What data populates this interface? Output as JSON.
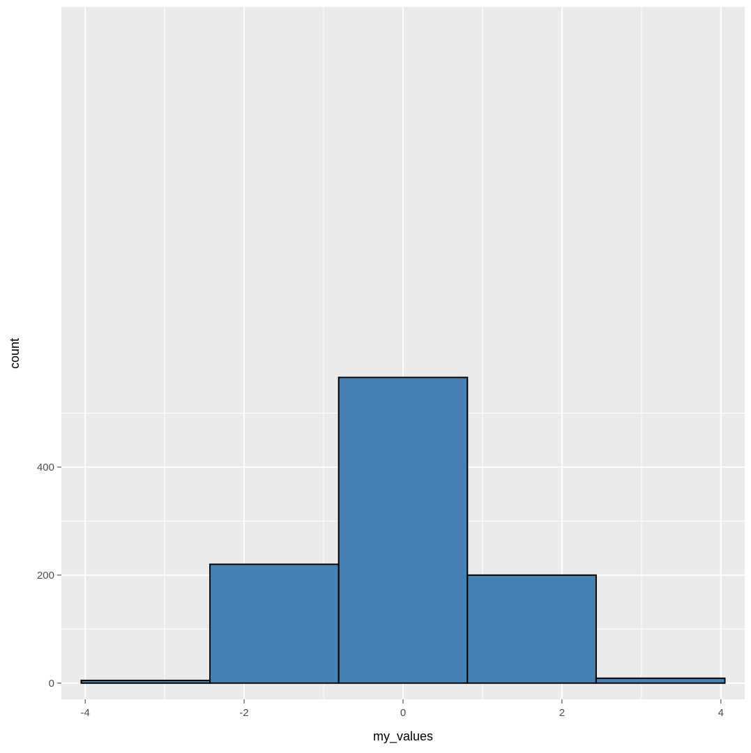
{
  "chart_data": {
    "type": "bar",
    "subtype": "histogram",
    "xlabel": "my_values",
    "ylabel": "count",
    "xlim": [
      -4.3,
      4.3
    ],
    "ylim": [
      -30,
      1252
    ],
    "x_ticks": [
      -4,
      -2,
      0,
      2,
      4
    ],
    "y_ticks": [
      0,
      200,
      400
    ],
    "y_minor_ticks": [
      100,
      300,
      500
    ],
    "x_minor_ticks": [
      -3,
      -1,
      1,
      3
    ],
    "grid": true,
    "bins": [
      {
        "x_start": -4.05,
        "x_end": -2.43,
        "count": 5
      },
      {
        "x_start": -2.43,
        "x_end": -0.81,
        "count": 220
      },
      {
        "x_start": -0.81,
        "x_end": 0.81,
        "count": 566
      },
      {
        "x_start": 0.81,
        "x_end": 2.43,
        "count": 200
      },
      {
        "x_start": 2.43,
        "x_end": 4.05,
        "count": 9
      }
    ],
    "colors": {
      "fill": "#4682b4",
      "outline": "#000000",
      "panel": "#ebebeb",
      "grid": "#ffffff",
      "tick": "#333333"
    }
  }
}
